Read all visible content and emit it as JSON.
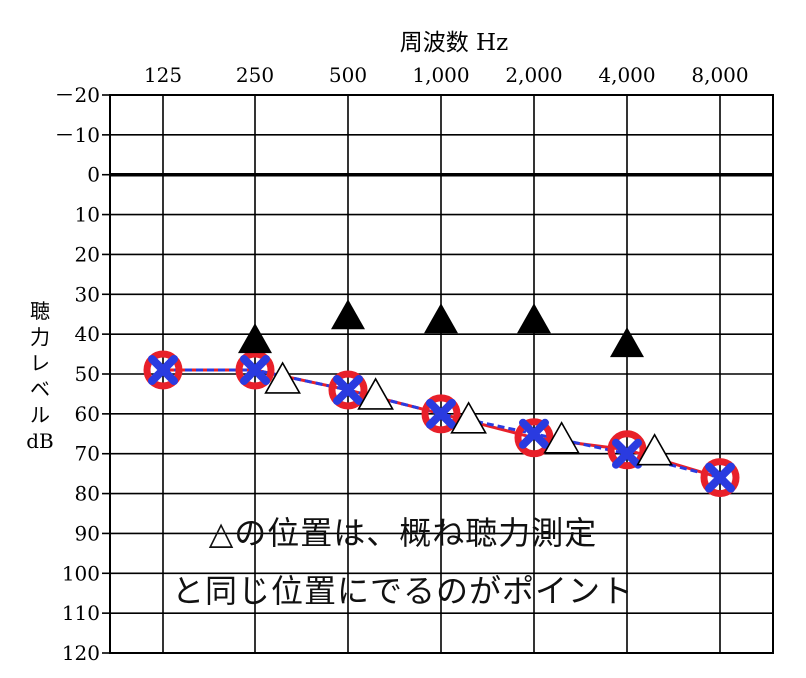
{
  "chart_data": {
    "type": "line",
    "title": "周波数 Hz",
    "ylabel": "聴力レベル dB",
    "ylabel_lines": [
      "聴",
      "力",
      "レ",
      "ベ",
      "ル",
      "dB"
    ],
    "categories": [
      "125",
      "250",
      "500",
      "1,000",
      "2,000",
      "4,000",
      "8,000"
    ],
    "y_ticks": [
      -20,
      -10,
      0,
      10,
      20,
      30,
      40,
      50,
      60,
      70,
      80,
      90,
      100,
      110,
      120
    ],
    "y_tick_labels": [
      "－20",
      "－10",
      "0",
      "10",
      "20",
      "30",
      "40",
      "50",
      "60",
      "70",
      "80",
      "90",
      "100",
      "110",
      "120"
    ],
    "ylim": [
      -20,
      120
    ],
    "y_inverted": true,
    "zero_line": 0,
    "series": [
      {
        "name": "right-air-conduction",
        "marker": "circle",
        "color": "#e8202a",
        "line_style": "solid",
        "values": [
          49,
          49,
          54,
          60,
          66,
          69,
          76
        ]
      },
      {
        "name": "left-air-conduction",
        "marker": "cross",
        "color": "#2a3be0",
        "line_style": "dashed",
        "values": [
          49,
          49,
          54,
          60,
          65,
          70,
          76
        ]
      },
      {
        "name": "air-conduction-uncomfortable",
        "marker": "open-triangle",
        "color": "#000000",
        "x_offset_index": 0.3,
        "values": [
          null,
          51,
          55,
          61,
          66,
          69,
          null
        ]
      },
      {
        "name": "bone-conduction",
        "marker": "filled-triangle",
        "color": "#000000",
        "values": [
          null,
          41,
          35,
          36,
          36,
          42,
          null
        ]
      }
    ],
    "annotations": [
      "△の位置は、概ね聴力測定",
      "と同じ位置にでるのがポイント"
    ]
  }
}
